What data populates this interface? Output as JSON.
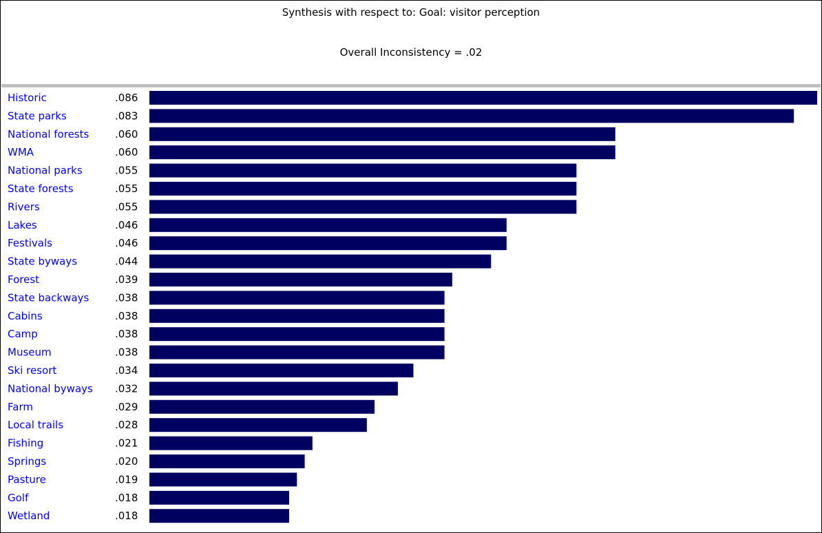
{
  "header": {
    "title": "Synthesis with respect to: Goal: visitor perception",
    "subtitle": "Overall Inconsistency = .02"
  },
  "colors": {
    "bar": "#000060",
    "label": "#0000ff",
    "value": "#000000",
    "divider": "#c0c0c0"
  },
  "chart_data": {
    "type": "bar",
    "orientation": "horizontal",
    "categories": [
      "Historic",
      "State parks",
      "National forests",
      "WMA",
      "National parks",
      "State forests",
      "Rivers",
      "Lakes",
      "Festivals",
      "State byways",
      "Forest",
      "State backways",
      "Cabins",
      "Camp",
      "Museum",
      "Ski resort",
      "National byways",
      "Farm",
      "Local trails",
      "Fishing",
      "Springs",
      "Pasture",
      "Golf",
      "Wetland"
    ],
    "values": [
      0.086,
      0.083,
      0.06,
      0.06,
      0.055,
      0.055,
      0.055,
      0.046,
      0.046,
      0.044,
      0.039,
      0.038,
      0.038,
      0.038,
      0.038,
      0.034,
      0.032,
      0.029,
      0.028,
      0.021,
      0.02,
      0.019,
      0.018,
      0.018
    ],
    "value_labels": [
      ".086",
      ".083",
      ".060",
      ".060",
      ".055",
      ".055",
      ".055",
      ".046",
      ".046",
      ".044",
      ".039",
      ".038",
      ".038",
      ".038",
      ".038",
      ".034",
      ".032",
      ".029",
      ".028",
      ".021",
      ".020",
      ".019",
      ".018",
      ".018"
    ],
    "xlim": [
      0,
      0.086
    ],
    "grid": false,
    "legend": "none"
  }
}
